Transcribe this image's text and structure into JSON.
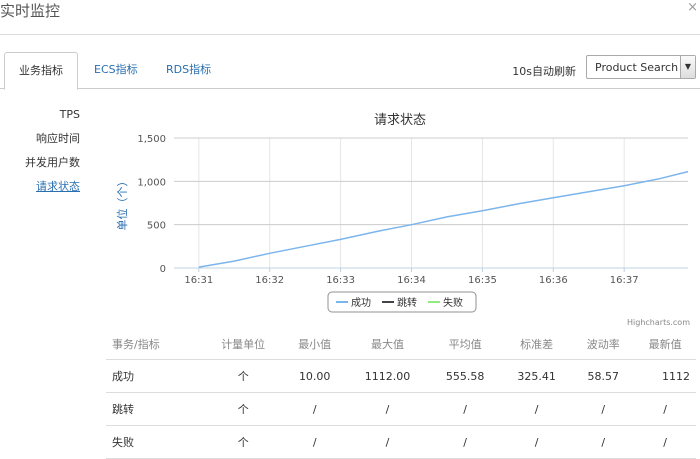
{
  "window": {
    "title": "实时监控",
    "close_icon": "×"
  },
  "tabs": [
    {
      "label": "业务指标",
      "active": true
    },
    {
      "label": "ECS指标",
      "active": false
    },
    {
      "label": "RDS指标",
      "active": false
    }
  ],
  "toolbar": {
    "refresh_label": "10s自动刷新",
    "select_value": "Product Search",
    "select_arrow": "▼"
  },
  "sidebar": {
    "items": [
      {
        "label": "TPS"
      },
      {
        "label": "响应时间"
      },
      {
        "label": "并发用户数"
      },
      {
        "label": "请求状态",
        "selected": true
      }
    ]
  },
  "chart_data": {
    "type": "line",
    "title": "请求状态",
    "ylabel": "单位（个）",
    "ylim": [
      0,
      1500
    ],
    "yticks": [
      "0",
      "500",
      "1,000",
      "1,500"
    ],
    "xticks": [
      "16:31",
      "16:32",
      "16:33",
      "16:34",
      "16:35",
      "16:36",
      "16:37"
    ],
    "grid": true,
    "legend_position": "bottom",
    "series": [
      {
        "name": "成功",
        "color": "#7cb5ec",
        "points": [
          [
            0,
            10
          ],
          [
            0.5,
            80
          ],
          [
            1,
            170
          ],
          [
            1.5,
            250
          ],
          [
            2,
            330
          ],
          [
            2.5,
            420
          ],
          [
            3,
            500
          ],
          [
            3.5,
            590
          ],
          [
            4,
            660
          ],
          [
            4.5,
            740
          ],
          [
            5,
            810
          ],
          [
            5.5,
            880
          ],
          [
            6,
            950
          ],
          [
            6.5,
            1030
          ],
          [
            6.9,
            1112
          ]
        ]
      },
      {
        "name": "跳转",
        "color": "#434348",
        "points": []
      },
      {
        "name": "失败",
        "color": "#90ed7d",
        "points": []
      }
    ]
  },
  "credits": "Highcharts.com",
  "table": {
    "headers": [
      "事务/指标",
      "计量单位",
      "最小值",
      "最大值",
      "平均值",
      "标准差",
      "波动率",
      "最新值"
    ],
    "rows": [
      [
        "成功",
        "个",
        "10.00",
        "1112.00",
        "555.58",
        "325.41",
        "58.57",
        "1112"
      ],
      [
        "跳转",
        "个",
        "/",
        "/",
        "/",
        "/",
        "/",
        "/"
      ],
      [
        "失败",
        "个",
        "/",
        "/",
        "/",
        "/",
        "/",
        "/"
      ]
    ]
  }
}
